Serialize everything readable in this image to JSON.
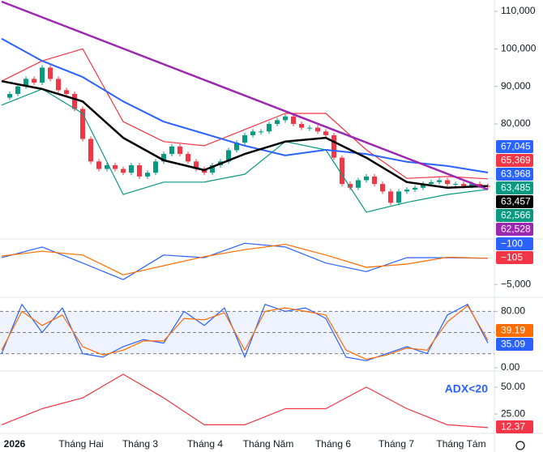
{
  "chart_data": [
    {
      "type": "candlestick",
      "ylim": [
        49350,
        113022
      ],
      "yticks": [
        {
          "value": 110000,
          "label": "110,000"
        },
        {
          "value": 100000,
          "label": "100,000"
        },
        {
          "value": 90000,
          "label": "90,000"
        },
        {
          "value": 80000,
          "label": "80,000"
        }
      ],
      "close": [
        87000,
        88000,
        90000,
        92000,
        91000,
        95000,
        92000,
        89000,
        88000,
        84000,
        76000,
        70000,
        68000,
        69000,
        68000,
        67000,
        69000,
        66000,
        67000,
        70000,
        72000,
        74000,
        72000,
        70000,
        68000,
        67000,
        69000,
        70000,
        73000,
        75000,
        77000,
        78000,
        78000,
        80000,
        81000,
        82000,
        80000,
        79000,
        79000,
        78000,
        77000,
        71000,
        64000,
        63000,
        65000,
        66000,
        64000,
        62000,
        59000,
        62000,
        62500,
        63000,
        64000,
        64500,
        65000,
        64000,
        64000,
        63500,
        64000,
        63500,
        63485
      ],
      "up_color": "#089981",
      "down_color": "#f23645",
      "series": [
        {
          "color": "#f23645",
          "values": [
            91400,
            96800,
            100000,
            80600,
            75300,
            74200,
            78500,
            82800,
            82800,
            73100,
            65500,
            66000,
            65369
          ]
        },
        {
          "color": "#089981",
          "values": [
            85000,
            89300,
            82800,
            61200,
            64500,
            64500,
            66600,
            75300,
            73100,
            56500,
            59100,
            61200,
            62566
          ]
        },
        {
          "color": "#2962ff",
          "values": [
            102700,
            96800,
            92500,
            86000,
            80600,
            77400,
            74200,
            71600,
            73100,
            72000,
            69900,
            68800,
            67045
          ]
        },
        {
          "color": "#000000",
          "values": [
            91400,
            89300,
            86000,
            76300,
            70300,
            67700,
            72000,
            75300,
            76300,
            71000,
            64500,
            63000,
            63457
          ]
        },
        {
          "color": "#9c27b0",
          "values": [
            112600,
            62528
          ]
        }
      ],
      "badges": [
        {
          "value": 67045,
          "label": "67,045",
          "color": "#2962ff"
        },
        {
          "value": 65369,
          "label": "65,369",
          "color": "#f23645"
        },
        {
          "value": 63968,
          "label": "63,968",
          "color": "#2962ff"
        },
        {
          "value": 63485,
          "label": "63,485",
          "color": "#089981"
        },
        {
          "value": 63457,
          "label": "63,457",
          "color": "#000000"
        },
        {
          "value": 62566,
          "label": "62,566",
          "color": "#089981"
        },
        {
          "value": 62528,
          "label": "62,528",
          "color": "#9c27b0"
        }
      ]
    },
    {
      "type": "line",
      "ylim": [
        -7400,
        3500
      ],
      "yticks": [
        {
          "value": -5000,
          "label": "−5,000"
        }
      ],
      "series": [
        {
          "color": "#2962ff",
          "values": [
            0,
            2000,
            -1000,
            -4100,
            500,
            0,
            2700,
            2000,
            -1000,
            -2600,
            0,
            0,
            -100
          ]
        },
        {
          "color": "#ff6d00",
          "values": [
            300,
            1200,
            500,
            -3200,
            -1500,
            200,
            1500,
            2500,
            500,
            -1800,
            -1200,
            100,
            -105
          ]
        }
      ],
      "badges": [
        {
          "value": -100,
          "label": "−100",
          "color": "#2962ff"
        },
        {
          "value": -105,
          "label": "−105",
          "color": "#f23645"
        }
      ]
    },
    {
      "type": "line",
      "ylim": [
        0,
        100
      ],
      "yticks": [
        {
          "value": 80,
          "label": "80.00"
        },
        {
          "value": 0,
          "label": "0.00"
        }
      ],
      "levels": [
        80,
        50,
        20
      ],
      "series": [
        {
          "color": "#2962ff",
          "values": [
            20,
            90,
            50,
            85,
            20,
            15,
            30,
            40,
            35,
            80,
            60,
            85,
            15,
            90,
            80,
            85,
            70,
            15,
            10,
            20,
            30,
            20,
            75,
            90,
            35.09
          ]
        },
        {
          "color": "#ff6d00",
          "values": [
            25,
            80,
            60,
            75,
            30,
            18,
            25,
            38,
            38,
            70,
            68,
            78,
            25,
            80,
            85,
            80,
            75,
            25,
            12,
            18,
            28,
            25,
            65,
            88,
            39.19
          ]
        }
      ],
      "badges": [
        {
          "value": 39.19,
          "label": "39.19",
          "color": "#ff6d00"
        },
        {
          "value": 35.09,
          "label": "35.09",
          "color": "#2962ff"
        }
      ]
    },
    {
      "type": "line",
      "ylim": [
        7,
        65
      ],
      "yticks": [
        {
          "value": 50,
          "label": "50.00"
        },
        {
          "value": 25,
          "label": "25.00"
        }
      ],
      "annotation": "ADX<20",
      "series": [
        {
          "color": "#f23645",
          "values": [
            15,
            30,
            40,
            62,
            40,
            15,
            15,
            30,
            30,
            50,
            30,
            15,
            12.37
          ]
        }
      ],
      "badges": [
        {
          "value": 12.37,
          "label": "12.37",
          "color": "#f23645"
        }
      ]
    }
  ],
  "x_labels": [
    "2026",
    "Tháng Hai",
    "Tháng 3",
    "Tháng 4",
    "Tháng Năm",
    "Tháng 6",
    "Tháng 7",
    "Tháng Tám"
  ]
}
